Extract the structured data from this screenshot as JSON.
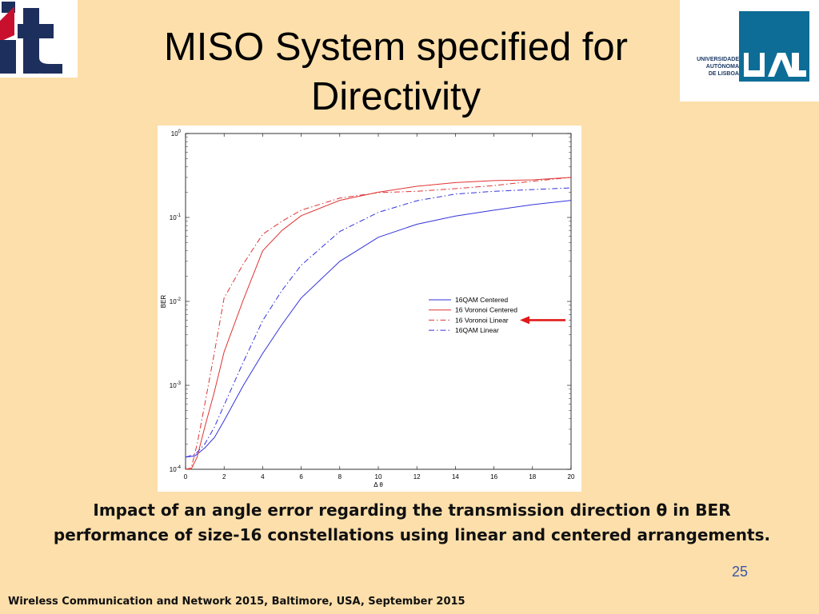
{
  "slide": {
    "title": "MISO System specified for Directivity",
    "caption_line1": "Impact of an angle error regarding the transmission direction θ in BER",
    "caption_line2": "performance of size-16 constellations using linear and centered arrangements.",
    "page_number": "25",
    "footer": "Wireless Communication and Network 2015, Baltimore, USA, September 2015"
  },
  "logos": {
    "left": "it",
    "right_text": "UNIVERSIDADE\nAUTÓNOMA\nDE LISBOA",
    "right_mark": "UAL"
  },
  "chart_data": {
    "type": "line",
    "title": "",
    "xlabel": "Δ θ",
    "ylabel": "BER",
    "xlim": [
      0,
      20
    ],
    "ylim": [
      0.0001,
      1
    ],
    "yscale": "log",
    "grid": false,
    "legend_position": "right-middle",
    "x_ticks": [
      0,
      2,
      4,
      6,
      8,
      10,
      12,
      14,
      16,
      18,
      20
    ],
    "y_ticks": [
      {
        "value": 1,
        "base": "10",
        "exp": "0"
      },
      {
        "value": 0.1,
        "base": "10",
        "exp": "-1"
      },
      {
        "value": 0.01,
        "base": "10",
        "exp": "-2"
      },
      {
        "value": 0.001,
        "base": "10",
        "exp": "-3"
      },
      {
        "value": 0.0001,
        "base": "10",
        "exp": "-4"
      }
    ],
    "series": [
      {
        "name": "16QAM Centered",
        "color": "#3333dd",
        "dash": "solid",
        "x": [
          0,
          0.5,
          1,
          1.5,
          2,
          3,
          4,
          5,
          6,
          8,
          10,
          12,
          14,
          16,
          18,
          20
        ],
        "y": [
          0.00014,
          0.000145,
          0.00018,
          0.00024,
          0.00038,
          0.001,
          0.0024,
          0.0053,
          0.011,
          0.03,
          0.058,
          0.083,
          0.104,
          0.122,
          0.142,
          0.16
        ]
      },
      {
        "name": "16 Voronoi Centered",
        "color": "#e03535",
        "dash": "solid",
        "x": [
          0,
          0.3,
          0.6,
          1,
          1.5,
          2,
          3,
          4,
          5,
          6,
          8,
          10,
          12,
          14,
          16,
          18,
          20
        ],
        "y": [
          0.0001,
          0.000101,
          0.00014,
          0.00032,
          0.00085,
          0.0025,
          0.0105,
          0.04,
          0.07,
          0.105,
          0.16,
          0.2,
          0.235,
          0.26,
          0.275,
          0.28,
          0.3
        ]
      },
      {
        "name": "16 Voronoi Linear",
        "color": "#e03535",
        "dash": "dashdot",
        "x": [
          0,
          0.3,
          0.6,
          1,
          1.5,
          2,
          3,
          4,
          5,
          6,
          8,
          10,
          12,
          14,
          16,
          18,
          20
        ],
        "y": [
          0.0001,
          0.000104,
          0.0002,
          0.0006,
          0.0025,
          0.011,
          0.028,
          0.063,
          0.09,
          0.122,
          0.17,
          0.198,
          0.205,
          0.22,
          0.24,
          0.27,
          0.3
        ]
      },
      {
        "name": "16QAM Linear",
        "color": "#3333dd",
        "dash": "dashdot",
        "x": [
          0,
          0.5,
          1,
          1.5,
          2,
          3,
          4,
          5,
          6,
          8,
          10,
          12,
          14,
          16,
          18,
          20
        ],
        "y": [
          0.00014,
          0.00015,
          0.0002,
          0.00032,
          0.00058,
          0.0019,
          0.0059,
          0.0135,
          0.027,
          0.068,
          0.115,
          0.158,
          0.19,
          0.205,
          0.215,
          0.225
        ]
      }
    ]
  }
}
